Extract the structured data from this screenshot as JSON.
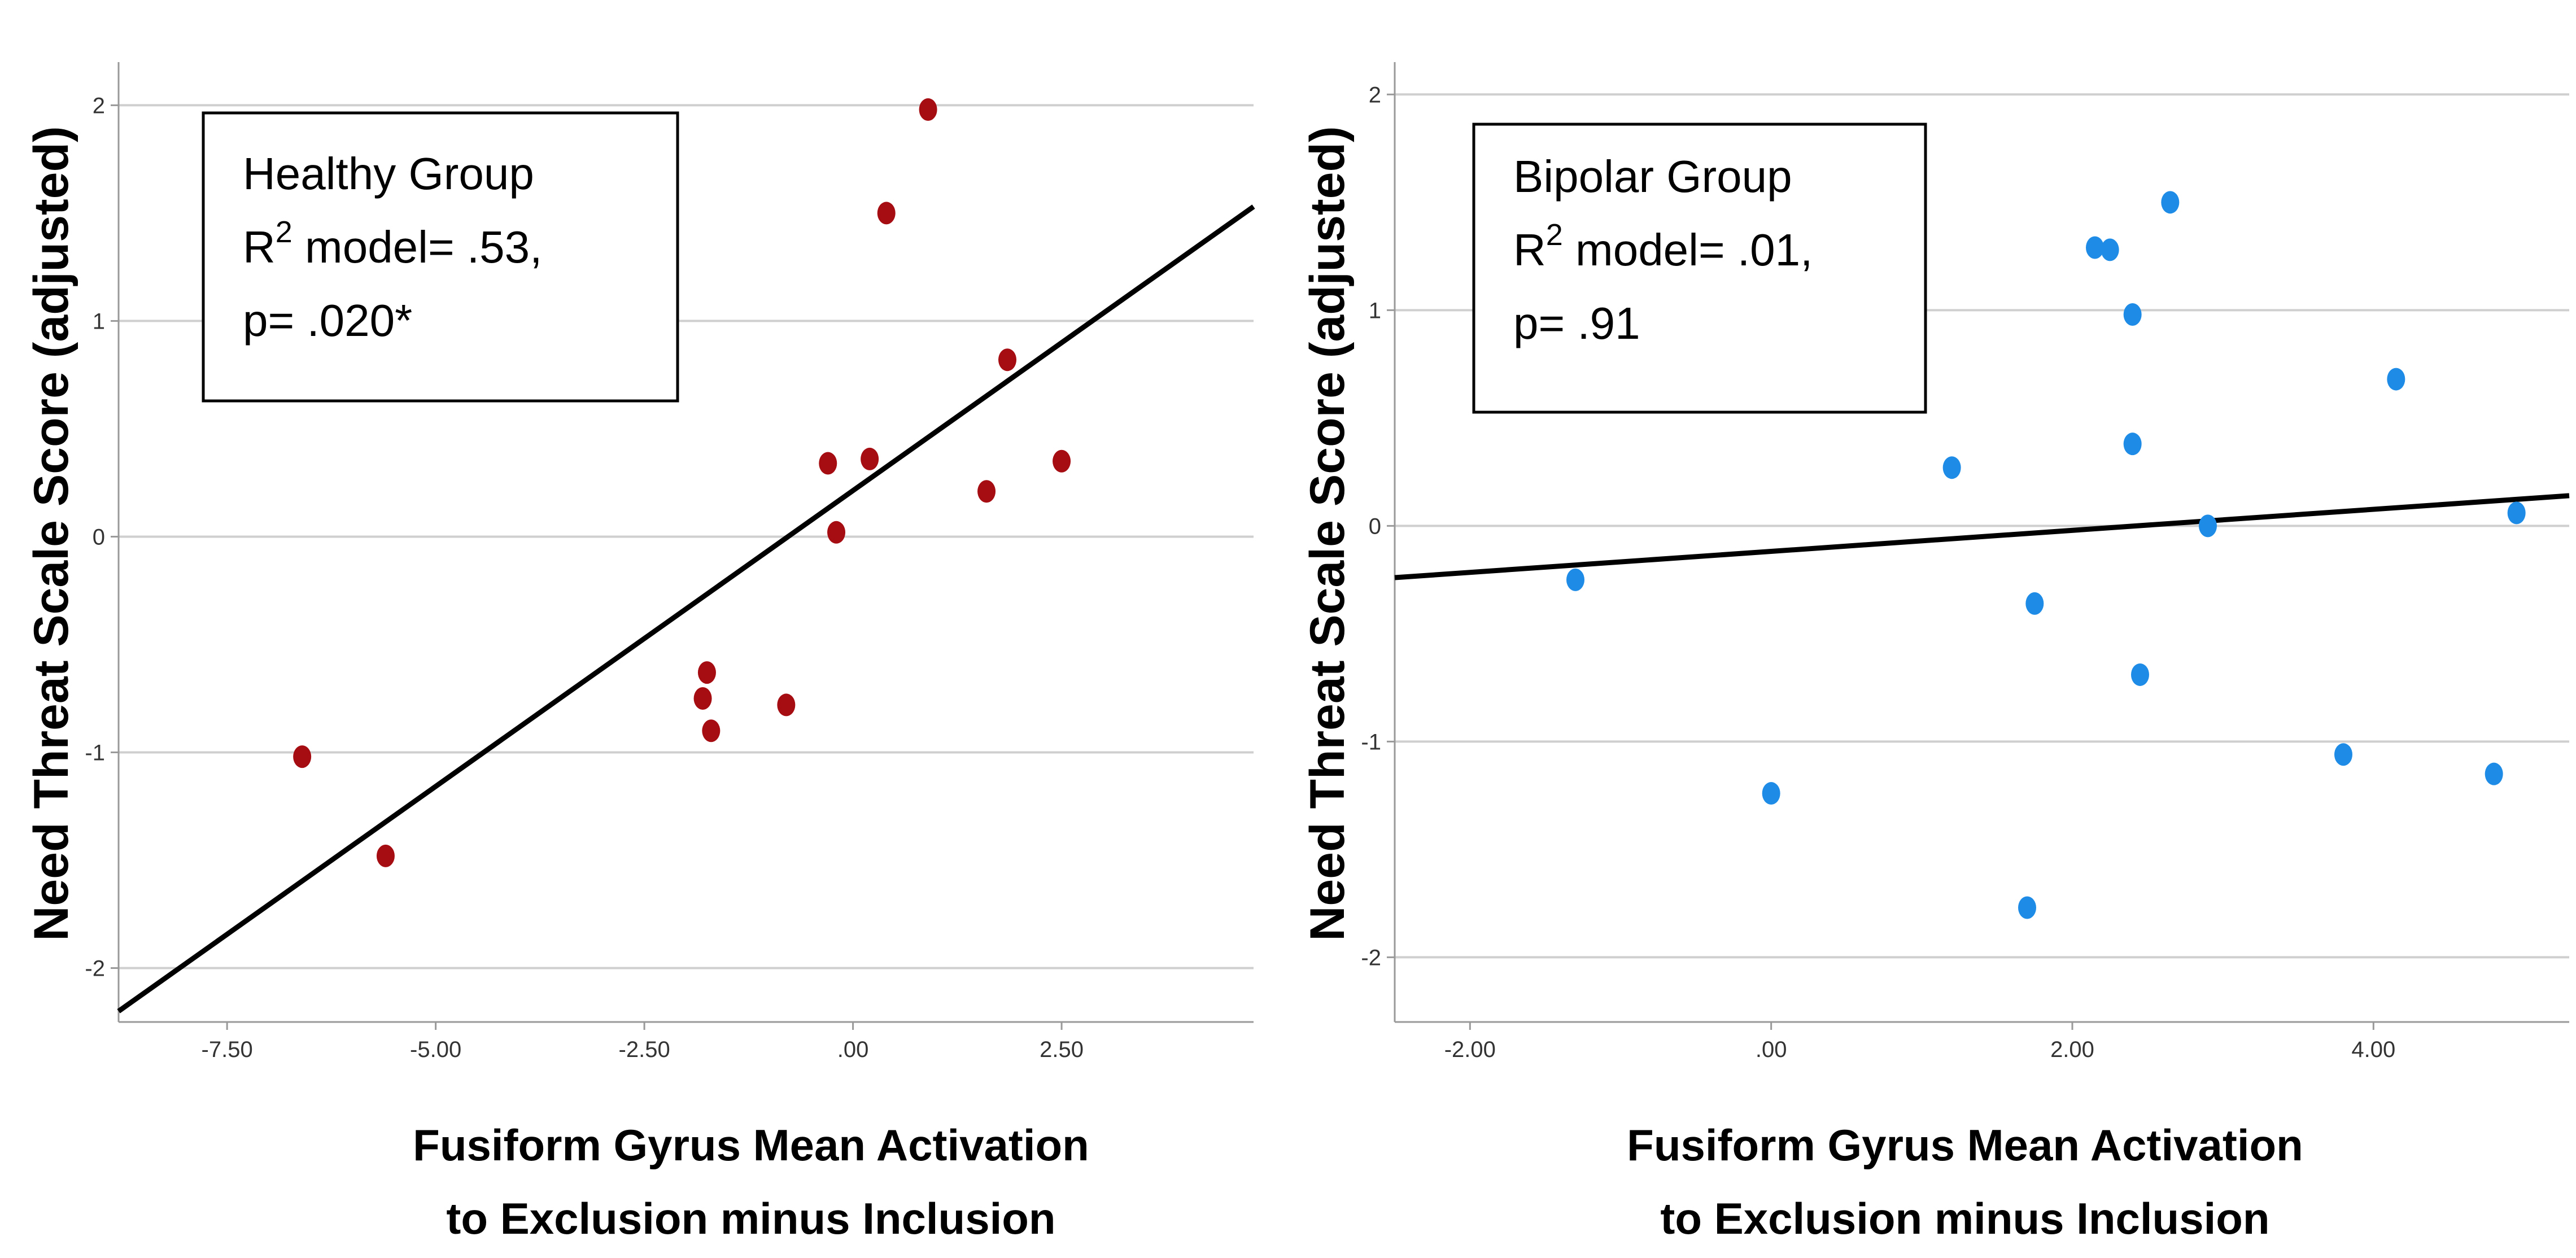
{
  "chart_data": [
    {
      "type": "scatter",
      "ylabel": "Need Threat Scale Score (adjusted)",
      "xlabel_lines": [
        "Fusiform Gyrus Mean Activation",
        "to Exclusion minus Inclusion"
      ],
      "annotation": {
        "group": "Healthy Group",
        "r2_prefix": "R",
        "r2_sup": "2",
        "r2_text": " model=  .53,",
        "p_text": "p= .020*"
      },
      "xlim": [
        -8.8,
        4.8
      ],
      "ylim": [
        -2.25,
        2.2
      ],
      "x_ticks": [
        -7.5,
        -5.0,
        -2.5,
        0.0,
        2.5
      ],
      "x_tick_labels": [
        "-7.50",
        "-5.00",
        "-2.50",
        ".00",
        "2.50"
      ],
      "y_ticks": [
        -2,
        -1,
        0,
        1,
        2
      ],
      "y_tick_labels": [
        "-2",
        "-1",
        "0",
        "1",
        "2"
      ],
      "grid": true,
      "point_color": "#a50d12",
      "line_color": "#000000",
      "fit_line": {
        "x": [
          -8.8,
          4.8
        ],
        "y": [
          -2.2,
          1.53
        ]
      },
      "x": [
        -6.6,
        -5.6,
        -1.8,
        -1.75,
        -1.7,
        -0.8,
        -0.3,
        -0.2,
        0.2,
        0.4,
        0.9,
        1.6,
        1.85,
        2.5
      ],
      "y": [
        -1.02,
        -1.48,
        -0.75,
        -0.63,
        -0.9,
        -0.78,
        0.34,
        0.02,
        0.36,
        1.5,
        1.98,
        0.21,
        0.82,
        0.35
      ]
    },
    {
      "type": "scatter",
      "ylabel": "Need Threat Scale Score (adjusted)",
      "xlabel_lines": [
        "Fusiform Gyrus Mean Activation",
        "to Exclusion minus Inclusion"
      ],
      "annotation": {
        "group": "Bipolar Group",
        "r2_prefix": "R",
        "r2_sup": "2",
        "r2_text": " model=  .01,",
        "p_text": "p= .91"
      },
      "xlim": [
        -2.5,
        5.3
      ],
      "ylim": [
        -2.3,
        2.15
      ],
      "x_ticks": [
        -2.0,
        0.0,
        2.0,
        4.0
      ],
      "x_tick_labels": [
        "-2.00",
        ".00",
        "2.00",
        "4.00"
      ],
      "y_ticks": [
        -2,
        -1,
        0,
        1,
        2
      ],
      "y_tick_labels": [
        "-2",
        "-1",
        "0",
        "1",
        "2"
      ],
      "grid": true,
      "point_color": "#1e8ce6",
      "line_color": "#000000",
      "fit_line": {
        "x": [
          -2.5,
          5.3
        ],
        "y": [
          -0.24,
          0.14
        ]
      },
      "x": [
        -1.3,
        0.0,
        1.2,
        1.7,
        1.75,
        2.15,
        2.25,
        2.4,
        2.4,
        2.45,
        2.65,
        2.9,
        3.8,
        4.15,
        4.8,
        4.95
      ],
      "y": [
        -0.25,
        -1.24,
        0.27,
        -1.77,
        -0.36,
        1.29,
        1.28,
        0.98,
        0.38,
        -0.69,
        1.5,
        0.0,
        -1.06,
        0.68,
        -1.15,
        0.06
      ]
    }
  ]
}
